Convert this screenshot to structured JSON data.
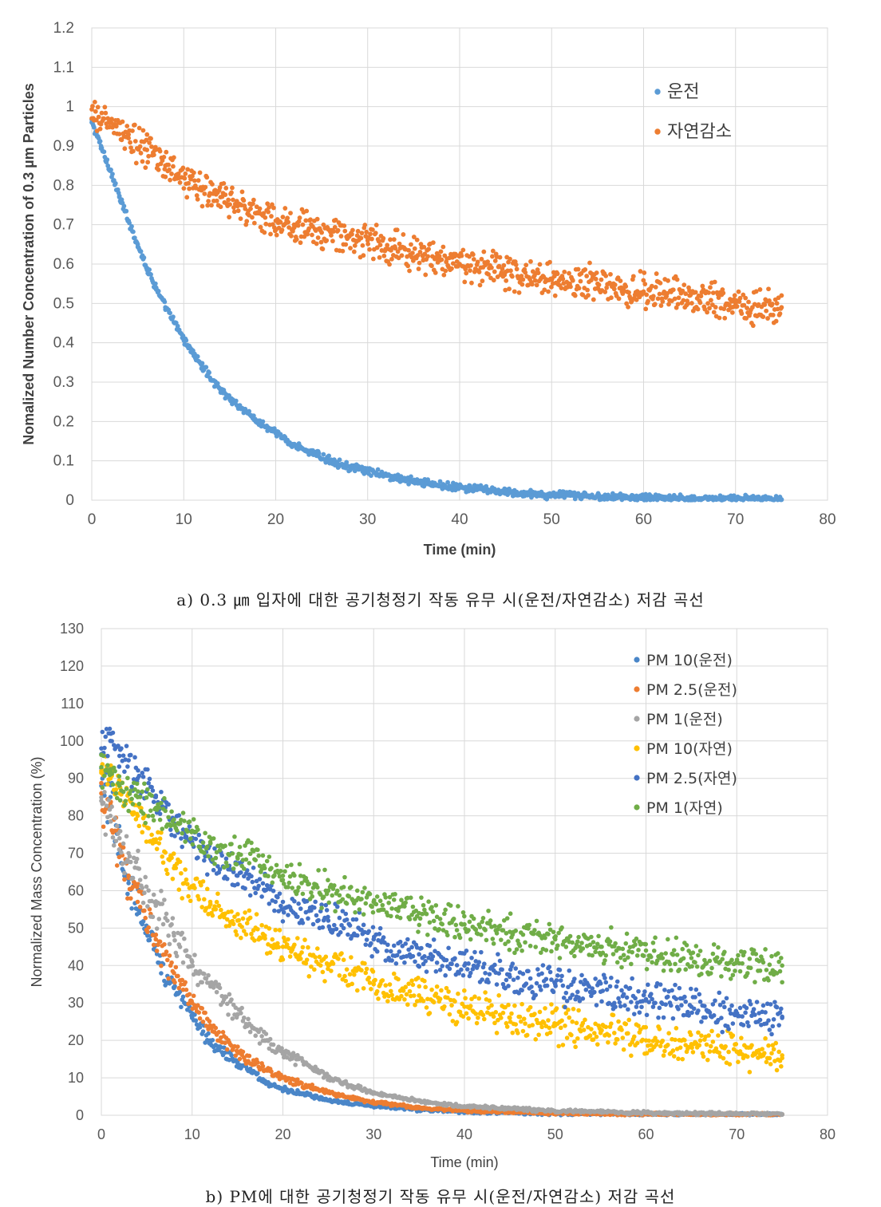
{
  "chart_data": [
    {
      "type": "scatter",
      "caption": "a) 0.3 ㎛ 입자에 대한 공기청정기 작동 유무 시(운전/자연감소) 저감 곡선",
      "xlabel": "Time (min)",
      "ylabel": "Nomalized Number Concentration of 0.3 µm Particles",
      "xlim": [
        0,
        80
      ],
      "ylim": [
        0,
        1.2
      ],
      "xticks": [
        "0",
        "10",
        "20",
        "30",
        "40",
        "50",
        "60",
        "70",
        "80"
      ],
      "yticks": [
        "0",
        "0.1",
        "0.2",
        "0.3",
        "0.4",
        "0.5",
        "0.6",
        "0.7",
        "0.8",
        "0.9",
        "1",
        "1.1",
        "1.2"
      ],
      "grid": true,
      "legend_position": "top-right",
      "series": [
        {
          "name": "운전",
          "color": "#5b9bd5",
          "x": [
            0,
            1,
            2,
            3,
            4,
            5,
            6,
            7,
            8,
            9,
            10,
            12,
            14,
            16,
            18,
            20,
            22,
            24,
            26,
            28,
            30,
            33,
            36,
            40,
            45,
            50,
            55,
            60,
            65,
            70,
            75
          ],
          "y": [
            0.96,
            0.9,
            0.84,
            0.77,
            0.71,
            0.65,
            0.59,
            0.54,
            0.49,
            0.45,
            0.41,
            0.34,
            0.28,
            0.24,
            0.2,
            0.17,
            0.14,
            0.12,
            0.1,
            0.085,
            0.073,
            0.057,
            0.045,
            0.032,
            0.02,
            0.013,
            0.009,
            0.006,
            0.004,
            0.003,
            0.002
          ]
        },
        {
          "name": "자연감소",
          "color": "#ed7d31",
          "x": [
            0,
            2,
            4,
            6,
            8,
            10,
            12,
            14,
            16,
            18,
            20,
            22,
            25,
            28,
            30,
            33,
            36,
            40,
            45,
            50,
            55,
            60,
            65,
            70,
            75
          ],
          "y": [
            0.97,
            0.96,
            0.92,
            0.89,
            0.85,
            0.82,
            0.79,
            0.77,
            0.75,
            0.73,
            0.71,
            0.7,
            0.68,
            0.67,
            0.66,
            0.64,
            0.62,
            0.6,
            0.58,
            0.56,
            0.55,
            0.53,
            0.52,
            0.5,
            0.49
          ]
        }
      ]
    },
    {
      "type": "scatter",
      "caption": "b) PM에 대한 공기청정기 작동 유무 시(운전/자연감소) 저감 곡선",
      "xlabel": "Time (min)",
      "ylabel": "Normalized Mass Concentration (%)",
      "xlim": [
        0,
        80
      ],
      "ylim": [
        0,
        130
      ],
      "xticks": [
        "0",
        "10",
        "20",
        "30",
        "40",
        "50",
        "60",
        "70",
        "80"
      ],
      "yticks": [
        "0",
        "10",
        "20",
        "30",
        "40",
        "50",
        "60",
        "70",
        "80",
        "90",
        "100",
        "110",
        "120",
        "130"
      ],
      "grid": true,
      "legend_position": "top-right",
      "series": [
        {
          "name": "PM 10(운전)",
          "color": "#4a86c8",
          "x": [
            0,
            1,
            2,
            3,
            4,
            6,
            8,
            10,
            12,
            15,
            18,
            20,
            25,
            30,
            35,
            40,
            50,
            60,
            70,
            75
          ],
          "y": [
            88,
            85,
            70,
            62,
            55,
            44,
            34,
            26,
            20,
            14,
            9,
            7,
            4,
            2.5,
            1.5,
            1,
            0.5,
            0.3,
            0.2,
            0.2
          ]
        },
        {
          "name": "PM 2.5(운전)",
          "color": "#ed7d31",
          "x": [
            0,
            1,
            2,
            3,
            4,
            6,
            8,
            10,
            12,
            15,
            18,
            20,
            25,
            30,
            35,
            40,
            50,
            60,
            70,
            75
          ],
          "y": [
            86,
            83,
            71,
            64,
            57,
            47,
            38,
            30,
            24,
            17,
            12,
            10,
            6,
            3.5,
            2,
            1.2,
            0.6,
            0.3,
            0.2,
            0.2
          ]
        },
        {
          "name": "PM 1(운전)",
          "color": "#a5a5a5",
          "x": [
            0,
            1,
            2,
            3,
            4,
            6,
            8,
            10,
            12,
            15,
            18,
            20,
            25,
            30,
            35,
            40,
            50,
            60,
            70,
            75
          ],
          "y": [
            84,
            80,
            74,
            70,
            66,
            56,
            48,
            41,
            35,
            27,
            20,
            17,
            10,
            6,
            3.8,
            2.4,
            1.1,
            0.6,
            0.4,
            0.3
          ]
        },
        {
          "name": "PM 10(자연)",
          "color": "#ffc000",
          "x": [
            0,
            1,
            2,
            4,
            6,
            8,
            10,
            12,
            15,
            18,
            20,
            25,
            30,
            35,
            40,
            45,
            50,
            55,
            60,
            65,
            70,
            75
          ],
          "y": [
            92,
            90,
            86,
            80,
            73,
            66,
            61,
            57,
            52,
            48,
            45,
            40,
            35,
            32,
            29,
            26,
            24,
            22,
            20,
            19,
            17,
            16
          ]
        },
        {
          "name": "PM 2.5(자연)",
          "color": "#4472c4",
          "x": [
            0,
            1,
            2,
            4,
            6,
            8,
            10,
            12,
            15,
            18,
            20,
            25,
            30,
            35,
            40,
            45,
            50,
            55,
            60,
            65,
            70,
            75
          ],
          "y": [
            98,
            100,
            96,
            90,
            85,
            78,
            73,
            69,
            64,
            60,
            57,
            52,
            47,
            43,
            40,
            37,
            35,
            33,
            31,
            29,
            27,
            26
          ]
        },
        {
          "name": "PM 1(자연)",
          "color": "#70ad47",
          "x": [
            0,
            1,
            2,
            4,
            6,
            8,
            10,
            12,
            15,
            18,
            20,
            25,
            30,
            35,
            40,
            45,
            50,
            55,
            60,
            65,
            70,
            75
          ],
          "y": [
            93,
            92,
            88,
            85,
            82,
            79,
            76,
            73,
            69,
            66,
            64,
            60,
            57,
            54,
            51,
            49,
            47,
            45,
            44,
            42,
            41,
            40
          ]
        }
      ]
    }
  ]
}
